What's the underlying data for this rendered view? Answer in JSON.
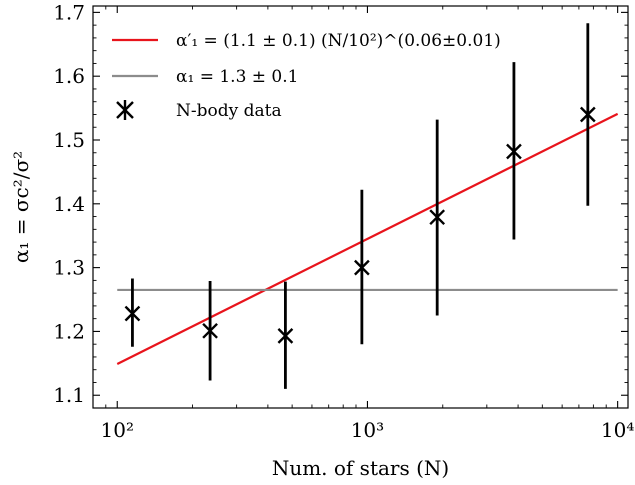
{
  "chart_data": {
    "type": "scatter",
    "xlabel": "Num. of stars (N)",
    "ylabel": "α₁ = σc²/σ²",
    "xscale": "log",
    "xlim": [
      80,
      11000
    ],
    "ylim": [
      1.08,
      1.71
    ],
    "x_ticks": [
      100,
      1000,
      10000
    ],
    "x_tick_labels": [
      "10²",
      "10³",
      "10⁴"
    ],
    "y_ticks": [
      1.1,
      1.2,
      1.3,
      1.4,
      1.5,
      1.6,
      1.7
    ],
    "y_tick_labels": [
      "1.1",
      "1.2",
      "1.3",
      "1.4",
      "1.5",
      "1.6",
      "1.7"
    ],
    "grid": false,
    "legend_position": "top-left",
    "series": [
      {
        "name": "α′₁ = (1.1 ± 0.1) (N/10²)^(0.06±0.01)",
        "kind": "line",
        "color": "#e8141c",
        "x": [
          100,
          10000
        ],
        "y": [
          1.149,
          1.541
        ]
      },
      {
        "name": "α₁ = 1.3 ± 0.1",
        "kind": "line",
        "color": "#8c8c8c",
        "x": [
          100,
          10000
        ],
        "y": [
          1.265,
          1.265
        ]
      },
      {
        "name": "N-body data",
        "kind": "errorbar",
        "color": "#000000",
        "marker": "x",
        "x": [
          115,
          235,
          470,
          950,
          1900,
          3850,
          7600
        ],
        "y": [
          1.228,
          1.201,
          1.193,
          1.3,
          1.379,
          1.482,
          1.54
        ],
        "yerr_low": [
          0.052,
          0.078,
          0.083,
          0.12,
          0.154,
          0.138,
          0.143
        ],
        "yerr_high": [
          0.055,
          0.078,
          0.085,
          0.122,
          0.153,
          0.14,
          0.143
        ]
      }
    ]
  }
}
